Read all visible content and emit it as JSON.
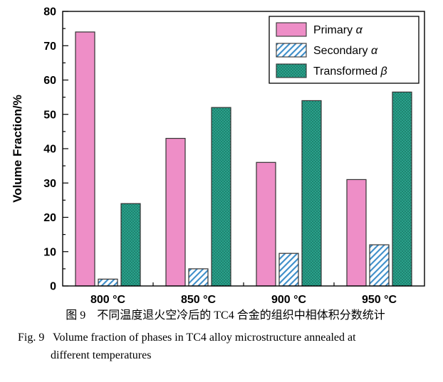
{
  "chart_data": {
    "type": "bar",
    "title": "",
    "categories": [
      "800 °C",
      "850 °C",
      "900 °C",
      "950 °C"
    ],
    "series": [
      {
        "name": "Primary α",
        "values": [
          74,
          43,
          36,
          31
        ]
      },
      {
        "name": "Secondary α",
        "values": [
          2,
          5,
          9.5,
          12
        ]
      },
      {
        "name": "Transformed β",
        "values": [
          24,
          52,
          54,
          56.5
        ]
      }
    ],
    "xlabel": "",
    "ylabel": "Volume Fraction/%",
    "ylim": [
      0,
      80
    ],
    "ytick_step": 10,
    "ytick_minor_step": 5,
    "yticks": [
      0,
      10,
      20,
      30,
      40,
      50,
      60,
      70,
      80
    ],
    "grid": false,
    "legend_position": "top-right",
    "colors": {
      "primary_fill": "#ee8ec7",
      "secondary_hatch": "#3d8ec9",
      "transformed_fill": "#2aa18b",
      "transformed_dot": "#11604f",
      "bar_outline": "#333333",
      "frame": "#000000"
    }
  },
  "captions": {
    "zh": "图 9　不同温度退火空冷后的 TC4 合金的组织中相体积分数统计",
    "en_line1": "Fig. 9   Volume fraction of phases in TC4 alloy microstructure annealed at",
    "en_line2": "different temperatures"
  }
}
